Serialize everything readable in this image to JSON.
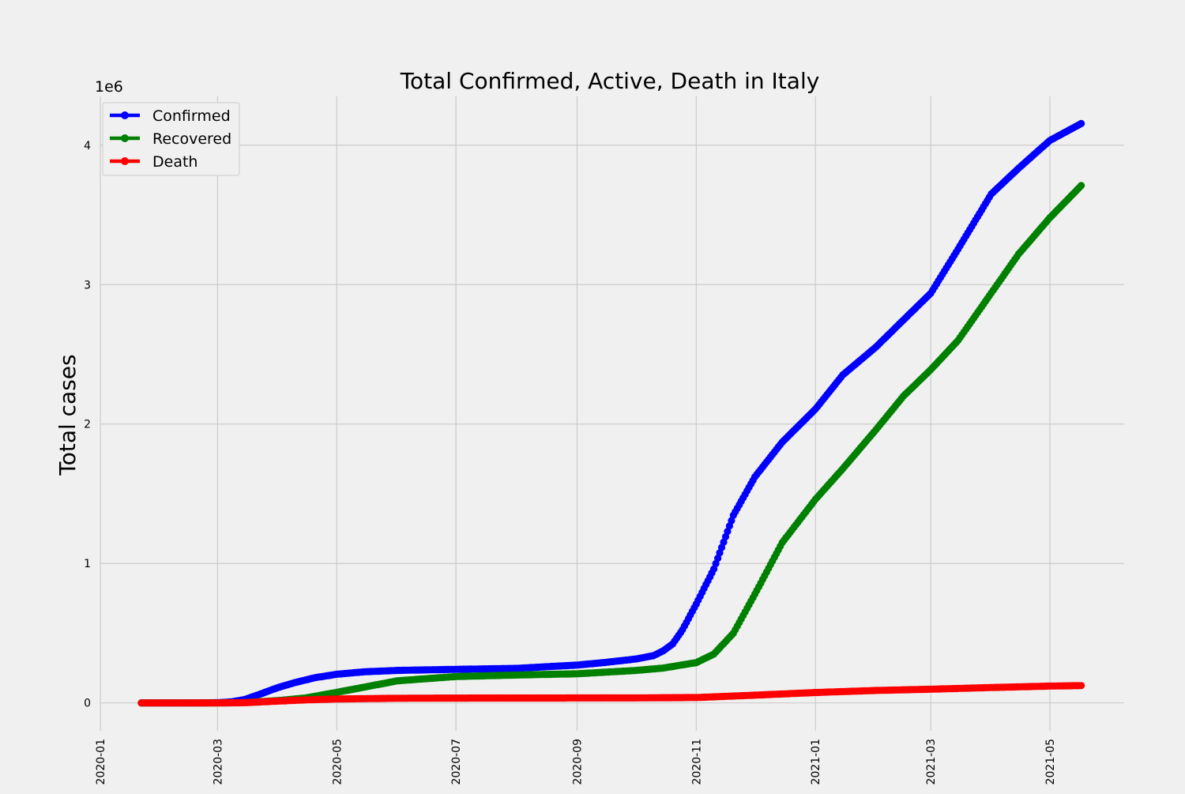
{
  "chart_data": {
    "type": "line",
    "title": "Total Confirmed, Active, Death in Italy",
    "xlabel": "",
    "ylabel": "Total cases",
    "y_offset_label": "1e6",
    "xlim": [
      "2020-01-01",
      "2021-06-08"
    ],
    "ylim": [
      -200000,
      4350000
    ],
    "x_ticks": [
      "2020-01",
      "2020-03",
      "2020-05",
      "2020-07",
      "2020-09",
      "2020-11",
      "2021-01",
      "2021-03",
      "2021-05"
    ],
    "x_tick_dates": [
      "2020-01-01",
      "2020-03-01",
      "2020-05-01",
      "2020-07-01",
      "2020-09-01",
      "2020-11-01",
      "2021-01-01",
      "2021-03-01",
      "2021-05-01"
    ],
    "y_ticks": [
      0,
      1000000,
      2000000,
      3000000,
      4000000
    ],
    "y_tick_labels": [
      "0",
      "1",
      "2",
      "3",
      "4"
    ],
    "grid": true,
    "legend_position": "top-left",
    "series": [
      {
        "name": "Confirmed",
        "color": "#0000ff",
        "x": [
          "2020-01-22",
          "2020-02-20",
          "2020-03-01",
          "2020-03-08",
          "2020-03-15",
          "2020-03-22",
          "2020-04-01",
          "2020-04-10",
          "2020-04-20",
          "2020-05-01",
          "2020-05-15",
          "2020-06-01",
          "2020-07-01",
          "2020-08-01",
          "2020-09-01",
          "2020-09-15",
          "2020-10-01",
          "2020-10-10",
          "2020-10-15",
          "2020-10-20",
          "2020-10-25",
          "2020-11-01",
          "2020-11-10",
          "2020-11-20",
          "2020-12-01",
          "2020-12-15",
          "2021-01-01",
          "2021-01-15",
          "2021-02-01",
          "2021-02-15",
          "2021-03-01",
          "2021-03-15",
          "2021-04-01",
          "2021-04-15",
          "2021-05-01",
          "2021-05-17"
        ],
        "values": [
          0,
          3,
          1700,
          7400,
          24700,
          59100,
          110600,
          147600,
          181200,
          205500,
          223100,
          233200,
          240800,
          247800,
          271500,
          289700,
          314800,
          338400,
          372800,
          423600,
          525800,
          709300,
          960400,
          1345800,
          1620900,
          1870600,
          2107200,
          2352400,
          2553000,
          2746000,
          2938000,
          3255000,
          3650000,
          3835000,
          4034000,
          4155000
        ]
      },
      {
        "name": "Recovered",
        "color": "#008000",
        "x": [
          "2020-01-22",
          "2020-03-01",
          "2020-03-15",
          "2020-04-01",
          "2020-04-15",
          "2020-05-01",
          "2020-05-15",
          "2020-06-01",
          "2020-06-15",
          "2020-07-01",
          "2020-08-01",
          "2020-09-01",
          "2020-10-01",
          "2020-10-15",
          "2020-11-01",
          "2020-11-10",
          "2020-11-20",
          "2020-12-01",
          "2020-12-15",
          "2021-01-01",
          "2021-01-15",
          "2021-02-01",
          "2021-02-15",
          "2021-03-01",
          "2021-03-15",
          "2021-04-01",
          "2021-04-15",
          "2021-05-01",
          "2021-05-17"
        ],
        "values": [
          0,
          100,
          2300,
          16800,
          35400,
          75900,
          112900,
          158400,
          173000,
          189200,
          200000,
          209000,
          232700,
          250000,
          289000,
          350000,
          500000,
          780000,
          1150000,
          1460000,
          1680000,
          1960000,
          2200000,
          2390000,
          2600000,
          2940000,
          3220000,
          3480000,
          3710000
        ]
      },
      {
        "name": "Death",
        "color": "#ff0000",
        "x": [
          "2020-01-22",
          "2020-03-01",
          "2020-03-15",
          "2020-04-01",
          "2020-04-15",
          "2020-05-01",
          "2020-06-01",
          "2020-07-01",
          "2020-09-01",
          "2020-10-01",
          "2020-11-01",
          "2020-12-01",
          "2021-01-01",
          "2021-02-01",
          "2021-03-01",
          "2021-04-01",
          "2021-05-01",
          "2021-05-17"
        ],
        "values": [
          0,
          34,
          1809,
          13155,
          21645,
          28236,
          33475,
          34788,
          35491,
          35986,
          38826,
          55576,
          74621,
          89344,
          98288,
          110328,
          120807,
          124156
        ]
      }
    ]
  }
}
